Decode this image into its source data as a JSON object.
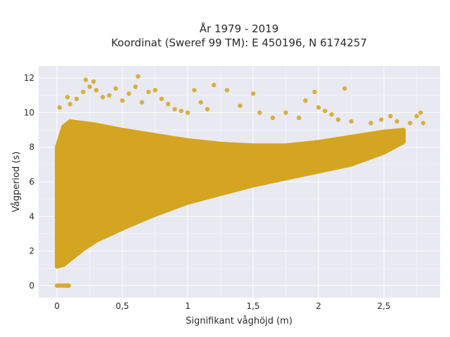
{
  "chart_data": {
    "type": "scatter",
    "title": "År 1979 - 2019",
    "subtitle": "Koordinat (Sweref 99 TM): E 450196, N 6174257",
    "xlabel": "Signifikant våghöjd (m)",
    "ylabel": "Vågperiod (s)",
    "xlim": [
      -0.14,
      2.93
    ],
    "ylim": [
      -0.7,
      12.7
    ],
    "xticks": [
      0,
      0.5,
      1,
      1.5,
      2,
      2.5
    ],
    "xtick_labels": [
      "0",
      "0,5",
      "1",
      "1,5",
      "2",
      "2,5"
    ],
    "yticks": [
      0,
      2,
      4,
      6,
      8,
      10,
      12
    ],
    "ytick_labels": [
      "0",
      "2",
      "4",
      "6",
      "8",
      "10",
      "12"
    ],
    "grid": true,
    "series": [
      {
        "color": "#D4A520",
        "envelope": {
          "x": [
            0.0,
            0.05,
            0.1,
            0.2,
            0.3,
            0.5,
            0.75,
            1.0,
            1.25,
            1.5,
            1.75,
            2.0,
            2.25,
            2.5,
            2.65
          ],
          "y_low": [
            1.1,
            1.2,
            1.5,
            2.1,
            2.6,
            3.3,
            4.1,
            4.8,
            5.3,
            5.8,
            6.2,
            6.6,
            7.0,
            7.7,
            8.3
          ],
          "y_high": [
            8.0,
            9.2,
            9.5,
            9.4,
            9.3,
            9.0,
            8.7,
            8.4,
            8.2,
            8.1,
            8.1,
            8.3,
            8.6,
            8.9,
            9.0
          ]
        },
        "points": [
          [
            0.0,
            0.0
          ],
          [
            0.02,
            0.0
          ],
          [
            0.04,
            0.0
          ],
          [
            0.06,
            0.0
          ],
          [
            0.08,
            0.0
          ],
          [
            0.09,
            0.0
          ],
          [
            0.0,
            2.0
          ],
          [
            0.0,
            4.0
          ],
          [
            0.0,
            6.0
          ],
          [
            0.0,
            7.5
          ],
          [
            0.02,
            10.3
          ],
          [
            0.08,
            10.9
          ],
          [
            0.1,
            10.5
          ],
          [
            0.15,
            10.8
          ],
          [
            0.2,
            11.2
          ],
          [
            0.22,
            11.9
          ],
          [
            0.25,
            11.5
          ],
          [
            0.28,
            11.8
          ],
          [
            0.3,
            11.3
          ],
          [
            0.35,
            10.9
          ],
          [
            0.4,
            11.0
          ],
          [
            0.45,
            11.4
          ],
          [
            0.5,
            10.7
          ],
          [
            0.55,
            11.1
          ],
          [
            0.6,
            11.5
          ],
          [
            0.62,
            12.1
          ],
          [
            0.65,
            10.6
          ],
          [
            0.7,
            11.2
          ],
          [
            0.75,
            11.3
          ],
          [
            0.8,
            10.8
          ],
          [
            0.85,
            10.5
          ],
          [
            0.9,
            10.2
          ],
          [
            0.95,
            10.1
          ],
          [
            1.0,
            10.0
          ],
          [
            1.05,
            11.3
          ],
          [
            1.1,
            10.6
          ],
          [
            1.15,
            10.2
          ],
          [
            1.2,
            11.6
          ],
          [
            1.3,
            11.3
          ],
          [
            1.4,
            10.4
          ],
          [
            1.5,
            11.1
          ],
          [
            1.55,
            10.0
          ],
          [
            1.65,
            9.7
          ],
          [
            1.75,
            10.0
          ],
          [
            1.85,
            9.7
          ],
          [
            1.9,
            10.7
          ],
          [
            1.97,
            11.2
          ],
          [
            2.0,
            10.3
          ],
          [
            2.05,
            10.1
          ],
          [
            2.1,
            9.9
          ],
          [
            2.15,
            9.6
          ],
          [
            2.2,
            11.4
          ],
          [
            2.25,
            9.5
          ],
          [
            2.4,
            9.4
          ],
          [
            2.48,
            9.6
          ],
          [
            2.55,
            9.8
          ],
          [
            2.6,
            9.5
          ],
          [
            2.7,
            9.4
          ],
          [
            2.75,
            9.8
          ],
          [
            2.78,
            10.0
          ],
          [
            2.8,
            9.4
          ]
        ]
      }
    ]
  }
}
